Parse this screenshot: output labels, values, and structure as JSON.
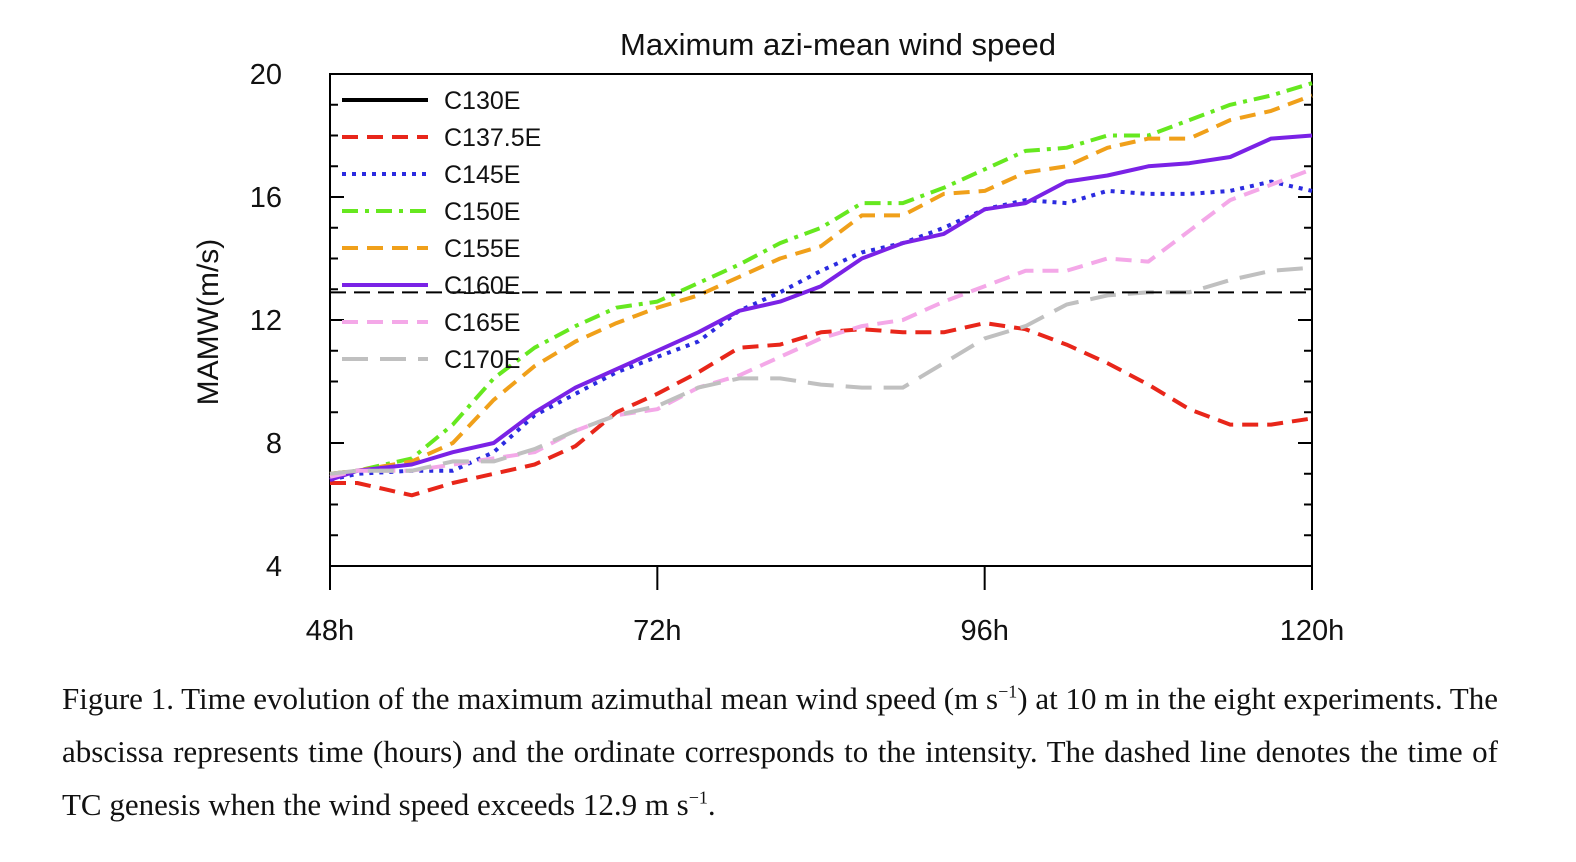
{
  "chart_data": {
    "type": "line",
    "title": "Maximum azi-mean wind speed",
    "xlabel": "",
    "ylabel": "MAMW(m/s)",
    "xlim": [
      48,
      120
    ],
    "ylim": [
      4,
      20
    ],
    "x_ticks": [
      48,
      72,
      96,
      120
    ],
    "x_tick_labels": [
      "48h",
      "72h",
      "96h",
      "120h"
    ],
    "y_ticks": [
      4,
      8,
      12,
      16,
      20
    ],
    "y_tick_labels": [
      "4",
      "8",
      "12",
      "16",
      "20"
    ],
    "grid": false,
    "legend_position": "top-left",
    "x": [
      48,
      50,
      54,
      57,
      60,
      63,
      66,
      69,
      72,
      75,
      78,
      81,
      84,
      87,
      90,
      93,
      96,
      99,
      102,
      105,
      108,
      111,
      114,
      117,
      120
    ],
    "series": [
      {
        "name": "C130E",
        "color": "#000000",
        "style": "solid",
        "values": [
          null,
          null,
          null,
          null,
          null,
          null,
          null,
          null,
          null,
          null,
          null,
          null,
          null,
          null,
          null,
          null,
          null,
          null,
          null,
          null,
          null,
          null,
          null,
          null,
          null
        ]
      },
      {
        "name": "C137.5E",
        "color": "#e8261a",
        "style": "dash",
        "values": [
          6.7,
          6.7,
          6.3,
          6.7,
          7.0,
          7.3,
          7.9,
          9.0,
          9.6,
          10.3,
          11.1,
          11.2,
          11.6,
          11.7,
          11.6,
          11.6,
          11.9,
          11.7,
          11.2,
          10.6,
          9.9,
          9.1,
          8.6,
          8.6,
          8.8
        ]
      },
      {
        "name": "C145E",
        "color": "#2b2be0",
        "style": "dot",
        "values": [
          6.8,
          7.0,
          7.1,
          7.1,
          7.7,
          8.9,
          9.6,
          10.3,
          10.8,
          11.3,
          12.3,
          12.9,
          13.6,
          14.2,
          14.5,
          15.0,
          15.6,
          15.9,
          15.8,
          16.2,
          16.1,
          16.1,
          16.2,
          16.5,
          16.2
        ]
      },
      {
        "name": "C150E",
        "color": "#66e81f",
        "style": "dashdot",
        "values": [
          7.0,
          7.1,
          7.5,
          8.6,
          10.1,
          11.1,
          11.8,
          12.4,
          12.6,
          13.2,
          13.8,
          14.5,
          15.0,
          15.8,
          15.8,
          16.3,
          16.9,
          17.5,
          17.6,
          18.0,
          18.0,
          18.5,
          19.0,
          19.3,
          19.7
        ]
      },
      {
        "name": "C155E",
        "color": "#f0a01a",
        "style": "dash",
        "values": [
          7.0,
          7.1,
          7.4,
          8.0,
          9.4,
          10.5,
          11.3,
          11.9,
          12.4,
          12.8,
          13.4,
          14.0,
          14.4,
          15.4,
          15.4,
          16.1,
          16.2,
          16.8,
          17.0,
          17.6,
          17.9,
          17.9,
          18.5,
          18.8,
          19.3
        ]
      },
      {
        "name": "C160E",
        "color": "#7a22e6",
        "style": "solid",
        "values": [
          6.8,
          7.1,
          7.3,
          7.7,
          8.0,
          9.0,
          9.8,
          10.4,
          11.0,
          11.6,
          12.3,
          12.6,
          13.1,
          14.0,
          14.5,
          14.8,
          15.6,
          15.8,
          16.5,
          16.7,
          17.0,
          17.1,
          17.3,
          17.9,
          18.0
        ]
      },
      {
        "name": "C165E",
        "color": "#f4a8e8",
        "style": "dash",
        "values": [
          6.9,
          7.1,
          7.1,
          7.3,
          7.5,
          7.7,
          8.4,
          8.9,
          9.1,
          9.8,
          10.2,
          10.8,
          11.4,
          11.8,
          12.0,
          12.6,
          13.1,
          13.6,
          13.6,
          14.0,
          13.9,
          14.9,
          15.9,
          16.4,
          16.9
        ]
      },
      {
        "name": "C170E",
        "color": "#c0c0c0",
        "style": "longdash",
        "values": [
          7.0,
          7.1,
          7.1,
          7.4,
          7.4,
          7.8,
          8.4,
          8.9,
          9.2,
          9.8,
          10.1,
          10.1,
          9.9,
          9.8,
          9.8,
          10.6,
          11.4,
          11.8,
          12.5,
          12.8,
          12.9,
          12.9,
          13.3,
          13.6,
          13.7
        ]
      }
    ],
    "reference_line": {
      "y": 12.9,
      "style": "dash",
      "color": "#000000"
    }
  },
  "caption": {
    "part1": "Figure 1. Time evolution of the maximum azimuthal mean wind speed (m s",
    "sup1": "−1",
    "part2": ") at 10 m in the eight experiments. The abscissa represents time (hours) and the ordinate corresponds to the intensity. The dashed line denotes the time of TC genesis when the wind speed exceeds 12.9 m s",
    "sup2": "−1",
    "part3": "."
  }
}
